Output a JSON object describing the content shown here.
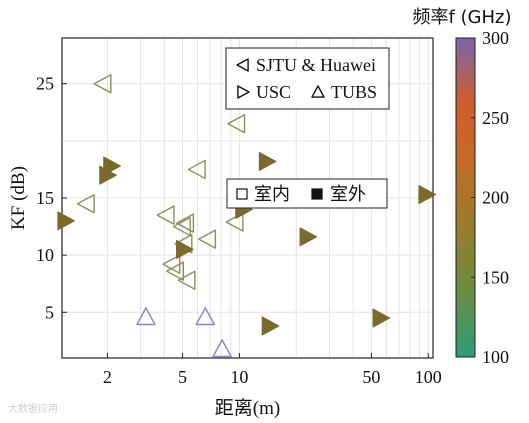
{
  "chart_data": {
    "type": "scatter",
    "title": "",
    "xlabel": "距离(m)",
    "ylabel": "KF (dB)",
    "xscale": "log",
    "xlim": [
      1.15,
      106
    ],
    "ylim": [
      1,
      29
    ],
    "xticks": [
      2,
      5,
      10,
      50,
      100
    ],
    "yticks": [
      5,
      10,
      15,
      25
    ],
    "grid": true,
    "colorbar": {
      "label": "频率f (GHz)",
      "range": [
        100,
        300
      ],
      "ticks": [
        100,
        150,
        200,
        250,
        300
      ],
      "colors": [
        "#2f9a7a",
        "#6f8a3f",
        "#9c7a2a",
        "#c76a24",
        "#cf5d2c",
        "#7a66a8"
      ]
    },
    "legends": [
      {
        "position": "top-right",
        "entries": [
          {
            "marker": "triangle-left",
            "label": "SJTU & Huawei"
          },
          {
            "marker": "triangle-right",
            "label": "USC"
          },
          {
            "marker": "triangle-up",
            "label": "TUBS"
          }
        ]
      },
      {
        "position": "center-right",
        "entries": [
          {
            "marker": "square-open",
            "label": "室内"
          },
          {
            "marker": "square-filled",
            "label": "室外"
          }
        ]
      }
    ],
    "series": [
      {
        "marker": "triangle-left",
        "filled": false,
        "freq_ghz": 140,
        "color": "#8c8f5c",
        "points": [
          [
            1.9,
            25
          ],
          [
            1.55,
            14.5
          ],
          [
            4.1,
            13.5
          ],
          [
            5,
            12.5
          ],
          [
            5.2,
            12.8
          ],
          [
            5.1,
            11
          ],
          [
            6.8,
            11.4
          ],
          [
            9.5,
            12.9
          ],
          [
            9.7,
            21.5
          ],
          [
            6,
            17.5
          ],
          [
            4.4,
            9.2
          ],
          [
            4.6,
            8.6
          ],
          [
            5.3,
            7.8
          ]
        ]
      },
      {
        "marker": "triangle-right",
        "filled": true,
        "freq_ghz": 140,
        "color": "#7a6a2c",
        "points": [
          [
            1.2,
            13
          ],
          [
            2,
            17
          ],
          [
            2.1,
            17.8
          ],
          [
            5.1,
            10.5
          ],
          [
            10.5,
            14
          ],
          [
            14,
            18.2
          ],
          [
            23,
            11.6
          ],
          [
            14.5,
            3.8
          ],
          [
            56,
            4.5
          ],
          [
            98,
            15.3
          ]
        ]
      },
      {
        "marker": "triangle-up",
        "filled": false,
        "freq_ghz": 300,
        "color": "#8a86c8",
        "points": [
          [
            3.2,
            4.6
          ],
          [
            6.6,
            4.6
          ],
          [
            8.1,
            1.8
          ]
        ]
      }
    ]
  },
  "watermark": "大数据应用"
}
